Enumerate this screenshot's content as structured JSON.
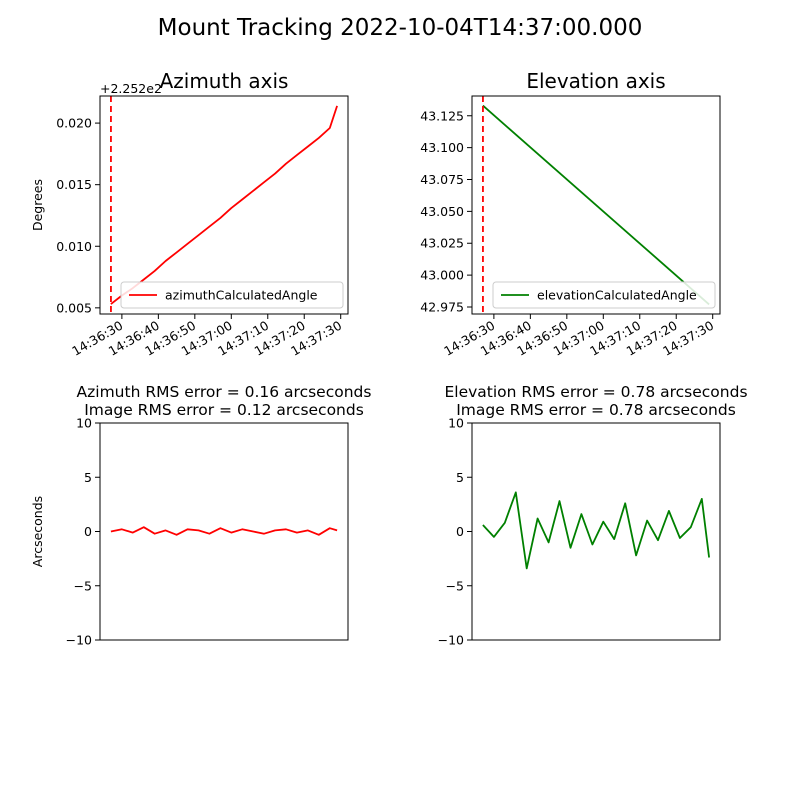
{
  "figure": {
    "title": "Mount Tracking 2022-10-04T14:37:00.000"
  },
  "chart_data": [
    {
      "type": "line",
      "title": "Azimuth axis",
      "ylabel": "Degrees",
      "offset_text": "+2.252e2",
      "xlim": [
        "14:36:24",
        "14:37:32"
      ],
      "ylim": [
        0.0045,
        0.0222
      ],
      "xticks": [
        "14:36:30",
        "14:36:40",
        "14:36:50",
        "14:37:00",
        "14:37:10",
        "14:37:20",
        "14:37:30"
      ],
      "yticks": [
        "0.005",
        "0.010",
        "0.015",
        "0.020"
      ],
      "vline": {
        "x": "14:36:27",
        "color": "#ff0000",
        "style": "dashed"
      },
      "legend": {
        "location": "lower right",
        "entries": [
          "azimuthCalculatedAngle"
        ]
      },
      "series": [
        {
          "name": "azimuthCalculatedAngle",
          "color": "#ff0000",
          "x": [
            "14:36:27",
            "14:36:30",
            "14:36:33",
            "14:36:36",
            "14:36:39",
            "14:36:42",
            "14:36:45",
            "14:36:48",
            "14:36:51",
            "14:36:54",
            "14:36:57",
            "14:37:00",
            "14:37:03",
            "14:37:06",
            "14:37:09",
            "14:37:12",
            "14:37:15",
            "14:37:18",
            "14:37:21",
            "14:37:24",
            "14:37:27",
            "14:37:29"
          ],
          "values": [
            0.0053,
            0.006,
            0.0066,
            0.0073,
            0.008,
            0.0088,
            0.0095,
            0.0102,
            0.0109,
            0.0116,
            0.0123,
            0.0131,
            0.0138,
            0.0145,
            0.0152,
            0.0159,
            0.0167,
            0.0174,
            0.0181,
            0.0188,
            0.0196,
            0.0214
          ]
        }
      ]
    },
    {
      "type": "line",
      "title": "Elevation axis",
      "ylabel": "",
      "xlim": [
        "14:36:24",
        "14:37:32"
      ],
      "ylim": [
        42.9695,
        43.1405
      ],
      "xticks": [
        "14:36:30",
        "14:36:40",
        "14:36:50",
        "14:37:00",
        "14:37:10",
        "14:37:20",
        "14:37:30"
      ],
      "yticks": [
        "42.975",
        "43.000",
        "43.025",
        "43.050",
        "43.075",
        "43.100",
        "43.125"
      ],
      "vline": {
        "x": "14:36:27",
        "color": "#ff0000",
        "style": "dashed"
      },
      "legend": {
        "location": "lower right",
        "entries": [
          "elevationCalculatedAngle"
        ]
      },
      "series": [
        {
          "name": "elevationCalculatedAngle",
          "color": "#008000",
          "x": [
            "14:36:27",
            "14:37:29"
          ],
          "values": [
            43.133,
            42.977
          ]
        }
      ]
    },
    {
      "type": "line",
      "title": "Azimuth RMS error = 0.16 arcseconds\nImage RMS error = 0.12 arcseconds",
      "ylabel": "Arcseconds",
      "xlim": [
        "14:36:24",
        "14:37:32"
      ],
      "ylim": [
        -10,
        10
      ],
      "yticks": [
        "10",
        "5",
        "0",
        "−5",
        "−10"
      ],
      "series": [
        {
          "name": "",
          "color": "#ff0000",
          "x": [
            "14:36:27",
            "14:36:30",
            "14:36:33",
            "14:36:36",
            "14:36:39",
            "14:36:42",
            "14:36:45",
            "14:36:48",
            "14:36:51",
            "14:36:54",
            "14:36:57",
            "14:37:00",
            "14:37:03",
            "14:37:06",
            "14:37:09",
            "14:37:12",
            "14:37:15",
            "14:37:18",
            "14:37:21",
            "14:37:24",
            "14:37:27",
            "14:37:29"
          ],
          "values": [
            0.0,
            0.2,
            -0.1,
            0.4,
            -0.2,
            0.1,
            -0.3,
            0.2,
            0.1,
            -0.2,
            0.3,
            -0.1,
            0.2,
            0.0,
            -0.2,
            0.1,
            0.2,
            -0.1,
            0.1,
            -0.3,
            0.3,
            0.1
          ]
        }
      ]
    },
    {
      "type": "line",
      "title": "Elevation RMS error = 0.78 arcseconds\nImage RMS error = 0.78 arcseconds",
      "ylabel": "",
      "xlim": [
        "14:36:24",
        "14:37:32"
      ],
      "ylim": [
        -10,
        10
      ],
      "yticks": [
        "10",
        "5",
        "0",
        "−5",
        "−10"
      ],
      "series": [
        {
          "name": "",
          "color": "#008000",
          "x": [
            "14:36:27",
            "14:36:30",
            "14:36:33",
            "14:36:36",
            "14:36:39",
            "14:36:42",
            "14:36:45",
            "14:36:48",
            "14:36:51",
            "14:36:54",
            "14:36:57",
            "14:37:00",
            "14:37:03",
            "14:37:06",
            "14:37:09",
            "14:37:12",
            "14:37:15",
            "14:37:18",
            "14:37:21",
            "14:37:24",
            "14:37:27",
            "14:37:29"
          ],
          "values": [
            0.6,
            -0.5,
            0.8,
            3.6,
            -3.4,
            1.2,
            -1.0,
            2.8,
            -1.5,
            1.6,
            -1.2,
            0.9,
            -0.7,
            2.6,
            -2.2,
            1.0,
            -0.8,
            1.9,
            -0.6,
            0.4,
            3.0,
            -2.4
          ]
        }
      ]
    }
  ]
}
